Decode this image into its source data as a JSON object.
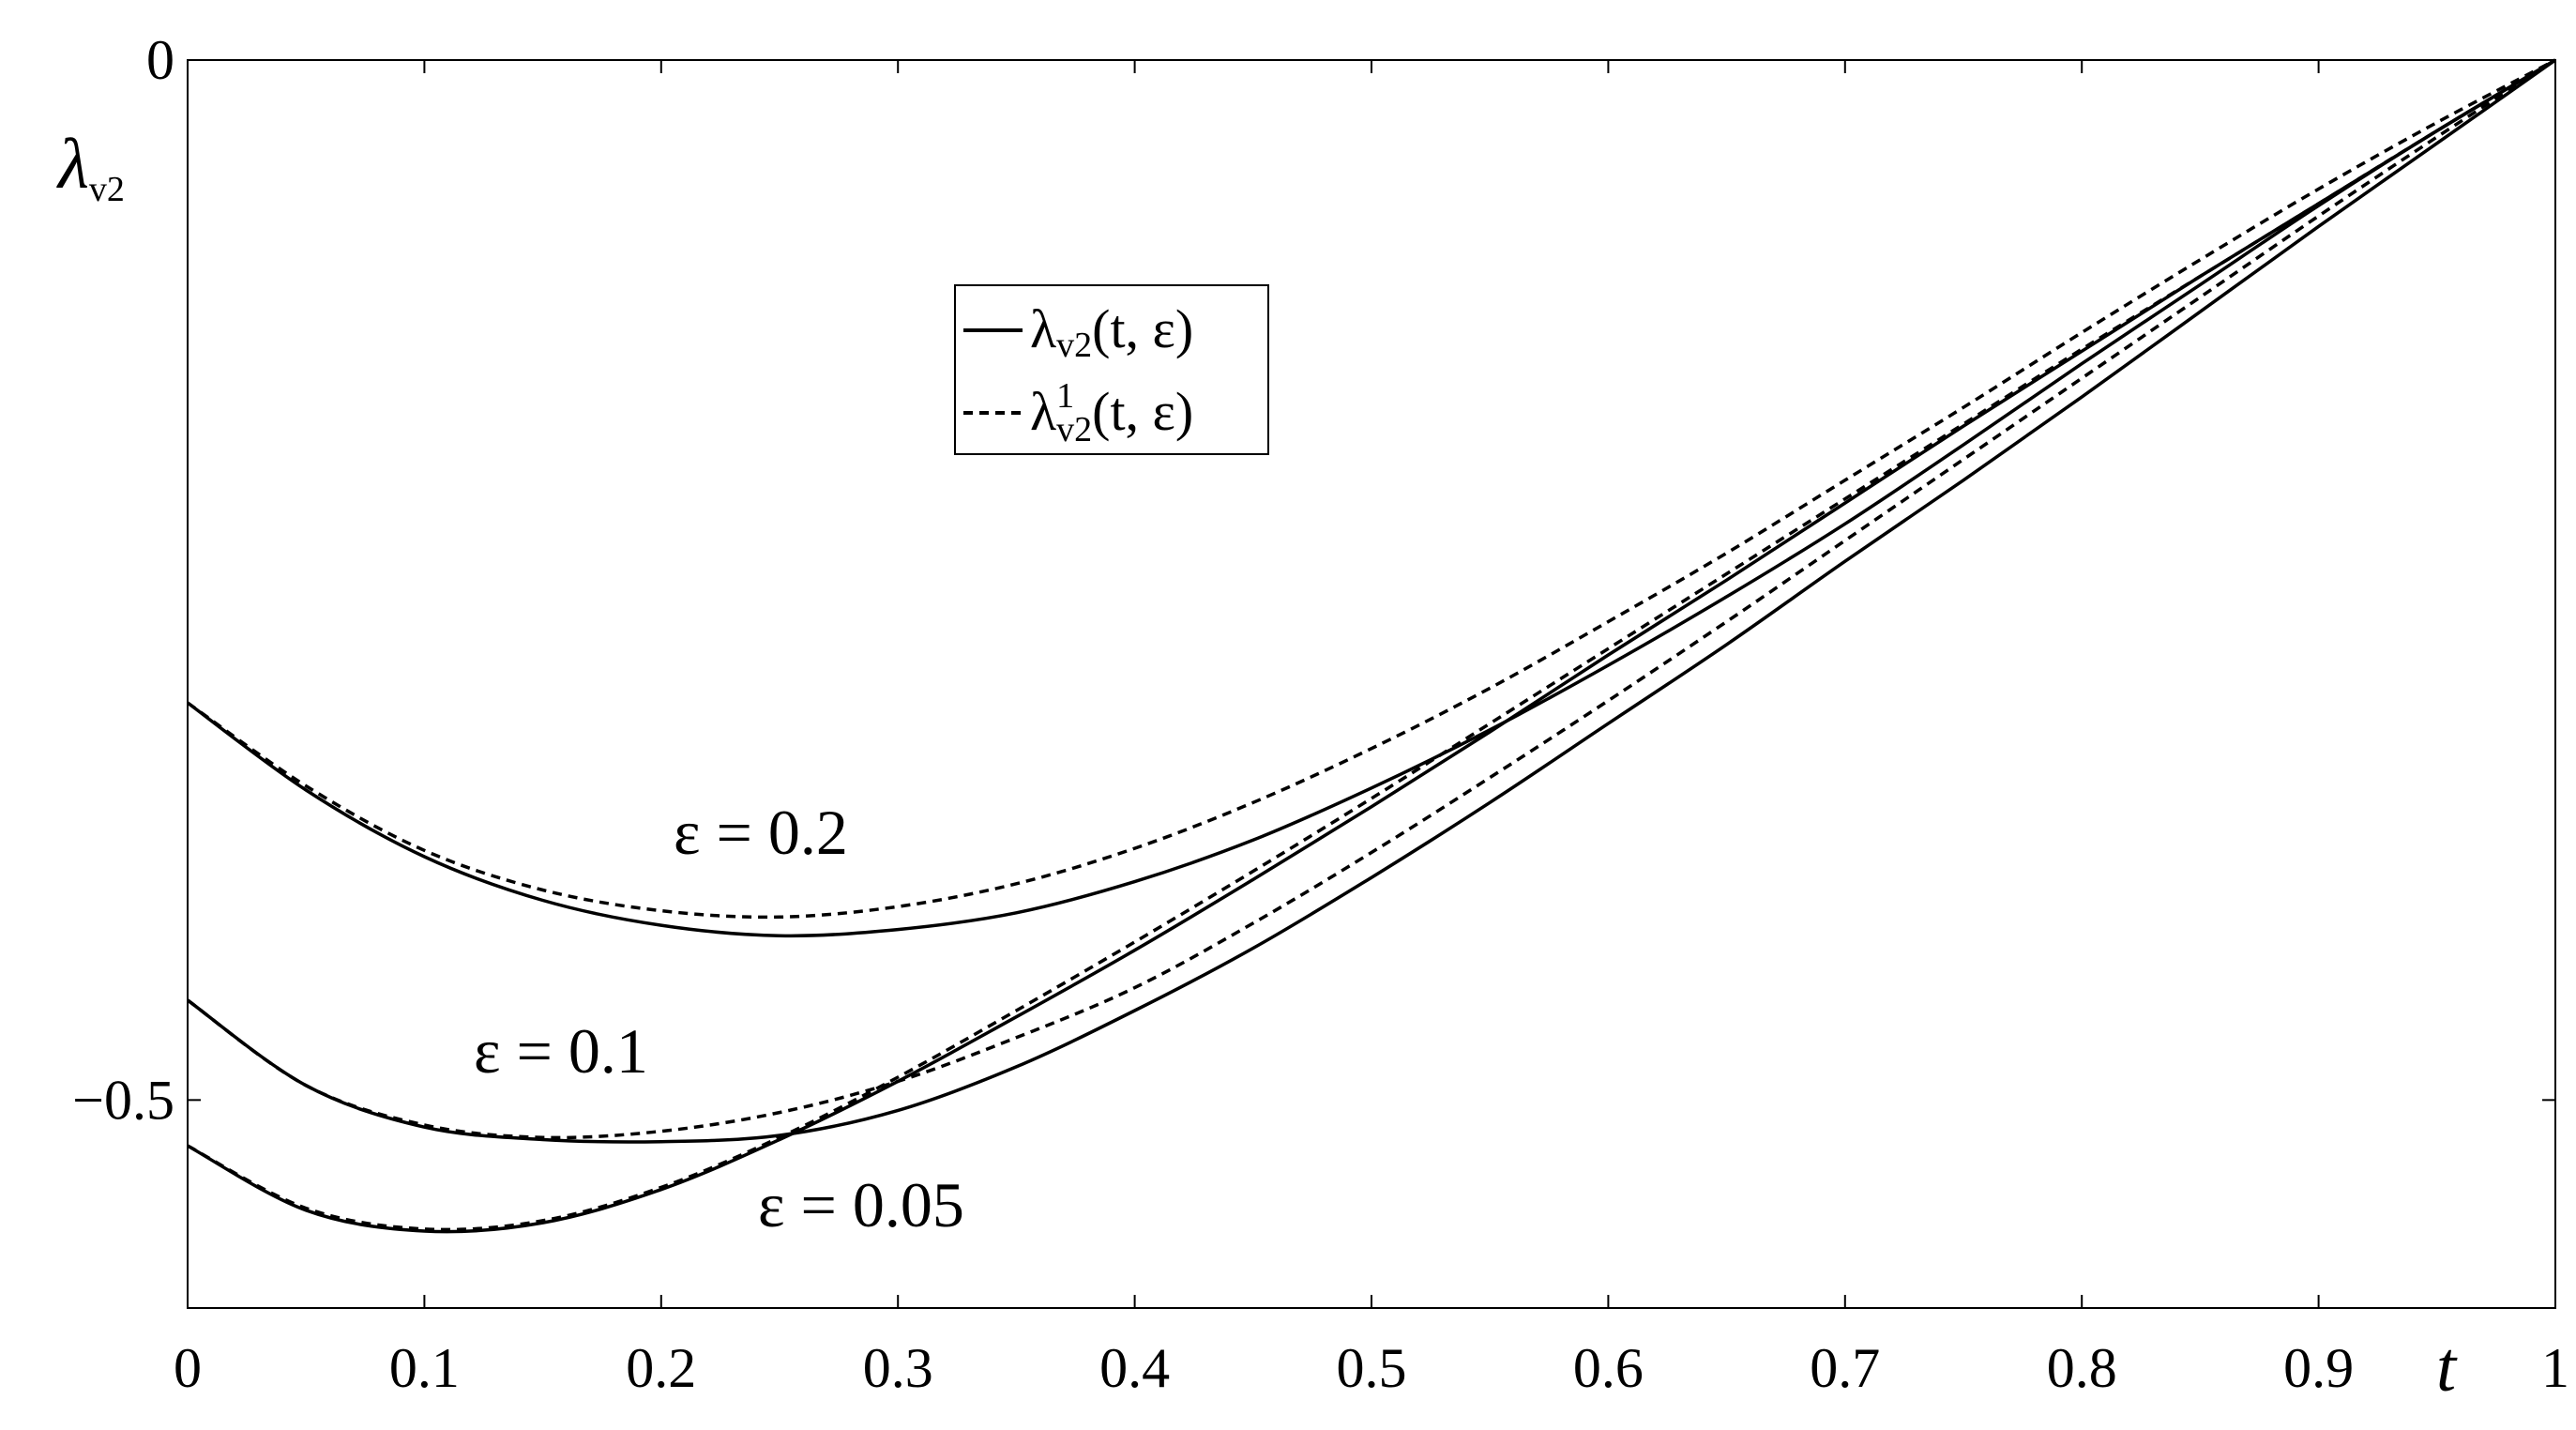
{
  "chart_data": {
    "type": "line",
    "xlabel": "t",
    "ylabel": {
      "base": "λ",
      "sub": "v2"
    },
    "xlim": [
      0,
      1
    ],
    "ylim": [
      -0.6,
      0
    ],
    "xticks": [
      "0",
      "0.1",
      "0.2",
      "0.3",
      "0.4",
      "0.5",
      "0.6",
      "0.7",
      "0.8",
      "0.9",
      "1"
    ],
    "yticks": [
      {
        "value": 0,
        "label": "0"
      },
      {
        "value": -0.5,
        "label": "−0.5"
      }
    ],
    "grid": false,
    "legend": {
      "placement": "upper-center",
      "entries": [
        {
          "style": "solid",
          "base": "λ",
          "sub": "v2",
          "sup": "",
          "args": "(t, ε)"
        },
        {
          "style": "dashed",
          "base": "λ",
          "sub": "v2",
          "sup": "1",
          "args": "(t, ε)"
        }
      ]
    },
    "annotations": [
      "ε = 0.2",
      "ε = 0.1",
      "ε = 0.05"
    ],
    "x": [
      0,
      0.05,
      0.1,
      0.15,
      0.2,
      0.25,
      0.3,
      0.35,
      0.4,
      0.45,
      0.5,
      0.55,
      0.6,
      0.65,
      0.7,
      0.75,
      0.8,
      0.85,
      0.9,
      0.95,
      1.0
    ],
    "series": [
      {
        "epsilon": "0.2",
        "style": "solid",
        "values": [
          -0.309,
          -0.351,
          -0.383,
          -0.404,
          -0.416,
          -0.421,
          -0.418,
          -0.41,
          -0.395,
          -0.375,
          -0.35,
          -0.322,
          -0.291,
          -0.258,
          -0.223,
          -0.185,
          -0.146,
          -0.108,
          -0.07,
          -0.034,
          0.0
        ]
      },
      {
        "epsilon": "0.2",
        "style": "dashed",
        "values": [
          -0.309,
          -0.349,
          -0.38,
          -0.399,
          -0.409,
          -0.412,
          -0.407,
          -0.396,
          -0.379,
          -0.357,
          -0.331,
          -0.302,
          -0.27,
          -0.237,
          -0.202,
          -0.167,
          -0.131,
          -0.096,
          -0.062,
          -0.03,
          0.0
        ]
      },
      {
        "epsilon": "0.1",
        "style": "solid",
        "values": [
          -0.452,
          -0.493,
          -0.513,
          -0.519,
          -0.52,
          -0.517,
          -0.505,
          -0.484,
          -0.457,
          -0.427,
          -0.393,
          -0.357,
          -0.319,
          -0.281,
          -0.241,
          -0.202,
          -0.162,
          -0.121,
          -0.08,
          -0.04,
          0.0
        ]
      },
      {
        "epsilon": "0.1",
        "style": "dashed",
        "values": [
          -0.452,
          -0.493,
          -0.512,
          -0.518,
          -0.515,
          -0.506,
          -0.491,
          -0.47,
          -0.446,
          -0.415,
          -0.381,
          -0.345,
          -0.308,
          -0.27,
          -0.231,
          -0.192,
          -0.153,
          -0.114,
          -0.075,
          -0.037,
          0.0
        ]
      },
      {
        "epsilon": "0.05",
        "style": "solid",
        "values": [
          -0.522,
          -0.553,
          -0.563,
          -0.559,
          -0.543,
          -0.519,
          -0.491,
          -0.46,
          -0.428,
          -0.394,
          -0.359,
          -0.323,
          -0.286,
          -0.25,
          -0.213,
          -0.176,
          -0.14,
          -0.104,
          -0.069,
          -0.034,
          0.0
        ]
      },
      {
        "epsilon": "0.05",
        "style": "dashed",
        "values": [
          -0.522,
          -0.552,
          -0.562,
          -0.558,
          -0.542,
          -0.518,
          -0.489,
          -0.457,
          -0.424,
          -0.39,
          -0.355,
          -0.319,
          -0.283,
          -0.247,
          -0.211,
          -0.175,
          -0.139,
          -0.104,
          -0.069,
          -0.034,
          0.0
        ]
      }
    ]
  }
}
